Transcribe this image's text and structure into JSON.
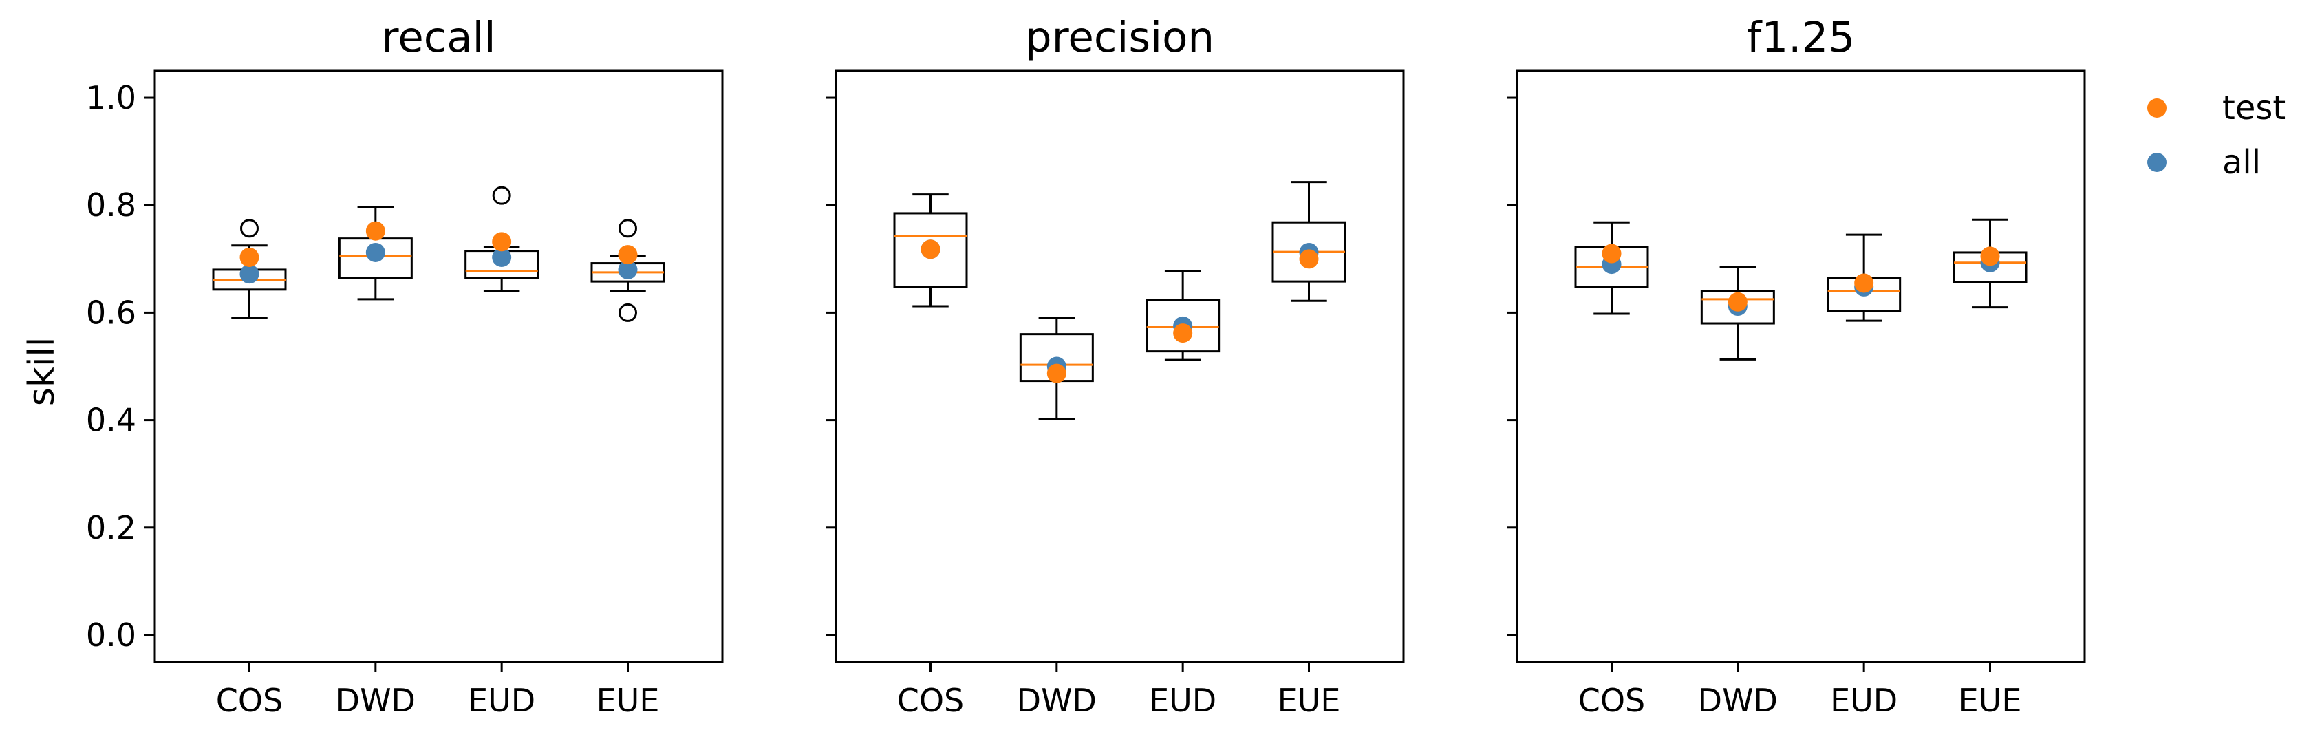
{
  "colors": {
    "test": "#ff7f0e",
    "all": "#4682b4",
    "median": "#ff7f0e",
    "box": "#000000"
  },
  "chart_data": {
    "type": "box",
    "ylabel": "skill",
    "ylim": [
      -0.05,
      1.05
    ],
    "yticks": [
      0.0,
      0.2,
      0.4,
      0.6,
      0.8,
      1.0
    ],
    "ytick_labels": [
      "0.0",
      "0.2",
      "0.4",
      "0.6",
      "0.8",
      "1.0"
    ],
    "categories": [
      "COS",
      "DWD",
      "EUD",
      "EUE"
    ],
    "legend": {
      "placement": "right",
      "entries": [
        {
          "key": "test",
          "label": "test"
        },
        {
          "key": "all",
          "label": "all"
        }
      ]
    },
    "panels": [
      {
        "title": "recall",
        "boxes": [
          {
            "category": "COS",
            "whisker_low": 0.59,
            "q1": 0.643,
            "median": 0.66,
            "q3": 0.68,
            "whisker_high": 0.725,
            "outliers": [
              0.757
            ],
            "test": 0.703,
            "all": 0.672
          },
          {
            "category": "DWD",
            "whisker_low": 0.625,
            "q1": 0.665,
            "median": 0.705,
            "q3": 0.738,
            "whisker_high": 0.797,
            "outliers": [],
            "test": 0.752,
            "all": 0.712
          },
          {
            "category": "EUD",
            "whisker_low": 0.64,
            "q1": 0.665,
            "median": 0.678,
            "q3": 0.715,
            "whisker_high": 0.722,
            "outliers": [
              0.818
            ],
            "test": 0.732,
            "all": 0.703
          },
          {
            "category": "EUE",
            "whisker_low": 0.64,
            "q1": 0.658,
            "median": 0.675,
            "q3": 0.692,
            "whisker_high": 0.705,
            "outliers": [
              0.757,
              0.6
            ],
            "test": 0.708,
            "all": 0.68
          }
        ]
      },
      {
        "title": "precision",
        "boxes": [
          {
            "category": "COS",
            "whisker_low": 0.612,
            "q1": 0.648,
            "median": 0.743,
            "q3": 0.785,
            "whisker_high": 0.82,
            "outliers": [],
            "test": 0.718,
            "all": 0.718
          },
          {
            "category": "DWD",
            "whisker_low": 0.402,
            "q1": 0.473,
            "median": 0.503,
            "q3": 0.56,
            "whisker_high": 0.59,
            "outliers": [],
            "test": 0.487,
            "all": 0.5
          },
          {
            "category": "EUD",
            "whisker_low": 0.512,
            "q1": 0.528,
            "median": 0.573,
            "q3": 0.623,
            "whisker_high": 0.678,
            "outliers": [],
            "test": 0.562,
            "all": 0.575
          },
          {
            "category": "EUE",
            "whisker_low": 0.622,
            "q1": 0.658,
            "median": 0.713,
            "q3": 0.768,
            "whisker_high": 0.843,
            "outliers": [],
            "test": 0.7,
            "all": 0.712
          }
        ]
      },
      {
        "title": "f1.25",
        "boxes": [
          {
            "category": "COS",
            "whisker_low": 0.598,
            "q1": 0.648,
            "median": 0.685,
            "q3": 0.722,
            "whisker_high": 0.768,
            "outliers": [],
            "test": 0.71,
            "all": 0.69
          },
          {
            "category": "DWD",
            "whisker_low": 0.513,
            "q1": 0.58,
            "median": 0.625,
            "q3": 0.64,
            "whisker_high": 0.685,
            "outliers": [],
            "test": 0.62,
            "all": 0.612
          },
          {
            "category": "EUD",
            "whisker_low": 0.585,
            "q1": 0.603,
            "median": 0.64,
            "q3": 0.665,
            "whisker_high": 0.745,
            "outliers": [],
            "test": 0.655,
            "all": 0.648
          },
          {
            "category": "EUE",
            "whisker_low": 0.61,
            "q1": 0.657,
            "median": 0.693,
            "q3": 0.712,
            "whisker_high": 0.773,
            "outliers": [],
            "test": 0.705,
            "all": 0.693
          }
        ]
      }
    ]
  }
}
